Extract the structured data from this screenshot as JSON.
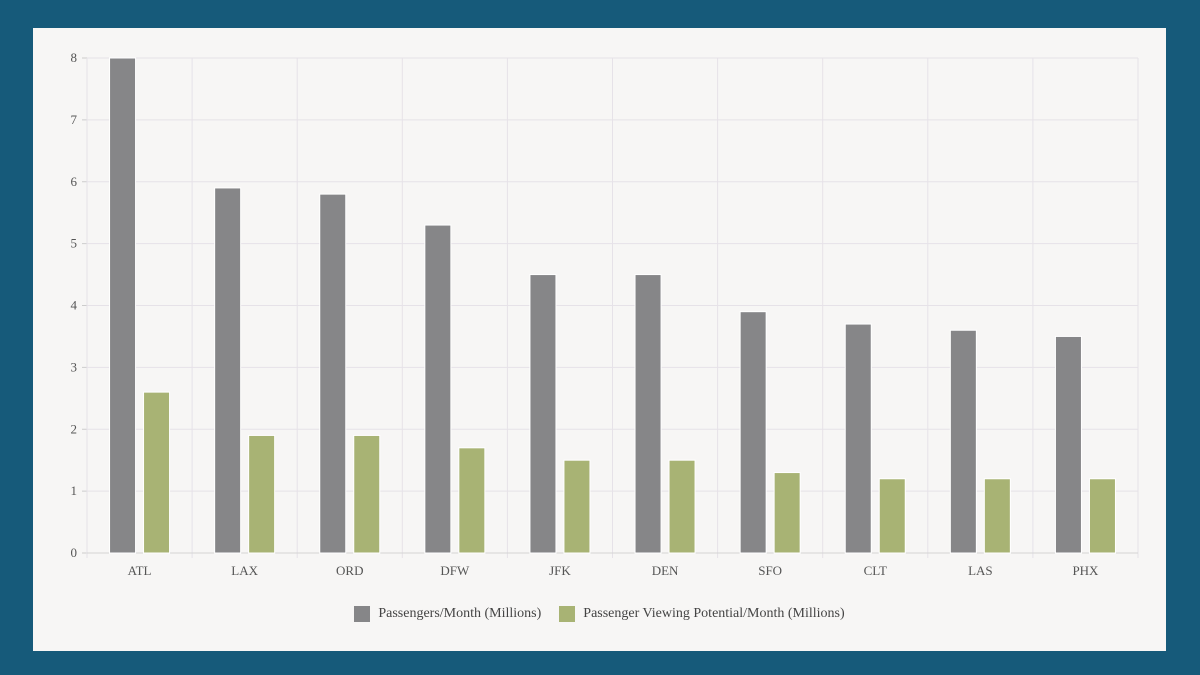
{
  "colors": {
    "frame": "#165a7a",
    "panel": "#f7f6f5",
    "series_passengers": "#868688",
    "series_viewing": "#a8b374",
    "grid": "#e6e2e8"
  },
  "chart_data": {
    "type": "bar",
    "categories": [
      "ATL",
      "LAX",
      "ORD",
      "DFW",
      "JFK",
      "DEN",
      "SFO",
      "CLT",
      "LAS",
      "PHX"
    ],
    "series": [
      {
        "name": "Passengers/Month (Millions)",
        "color": "#868688",
        "values": [
          8.0,
          5.9,
          5.8,
          5.3,
          4.5,
          4.5,
          3.9,
          3.7,
          3.6,
          3.5
        ]
      },
      {
        "name": "Passenger Viewing Potential/Month (Millions)",
        "color": "#a8b374",
        "values": [
          2.6,
          1.9,
          1.9,
          1.7,
          1.5,
          1.5,
          1.3,
          1.2,
          1.2,
          1.2
        ]
      }
    ],
    "yticks": [
      "0",
      "1",
      "2",
      "3",
      "4",
      "5",
      "6",
      "7",
      "8"
    ],
    "ylim": [
      0,
      8
    ],
    "grid": true,
    "legend_position": "bottom"
  },
  "legend": {
    "items": [
      {
        "label": "Passengers/Month (Millions)",
        "color": "#868688"
      },
      {
        "label": "Passenger Viewing Potential/Month (Millions)",
        "color": "#a8b374"
      }
    ]
  }
}
